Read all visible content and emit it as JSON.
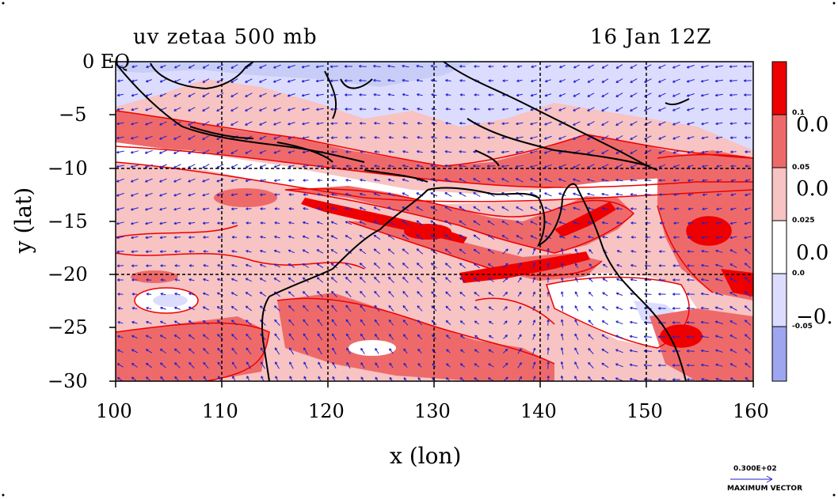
{
  "title": {
    "left": "uv zetaa 500 mb",
    "right": "16 Jan 12Z"
  },
  "axes": {
    "xlabel": "x (lon)",
    "ylabel": "y (lat)",
    "xticks": [
      "100",
      "110",
      "120",
      "130",
      "140",
      "150",
      "160"
    ],
    "yticks": [
      "0 EQ",
      "−5",
      "−10",
      "−15",
      "−20",
      "−25",
      "−30"
    ],
    "xlim": [
      100,
      160
    ],
    "ylim": [
      -30,
      0
    ]
  },
  "colorbar": {
    "colors": [
      "#ee0000",
      "#ee6a6a",
      "#f7c3c3",
      "#ffffff",
      "#dcdcff",
      "#9da6ee"
    ],
    "small_labels": [
      "0.1",
      "0.05",
      "0.025",
      "0.0",
      "-0.05"
    ],
    "big_labels": [
      "0.0",
      "0.0",
      "0.0",
      "−0."
    ]
  },
  "vector_legend": {
    "value": "0.300E+02",
    "label": "MAXIMUM VECTOR"
  },
  "colors": {
    "vector": "#2222cc",
    "contour": "#ee0000",
    "coast": "#000000"
  }
}
